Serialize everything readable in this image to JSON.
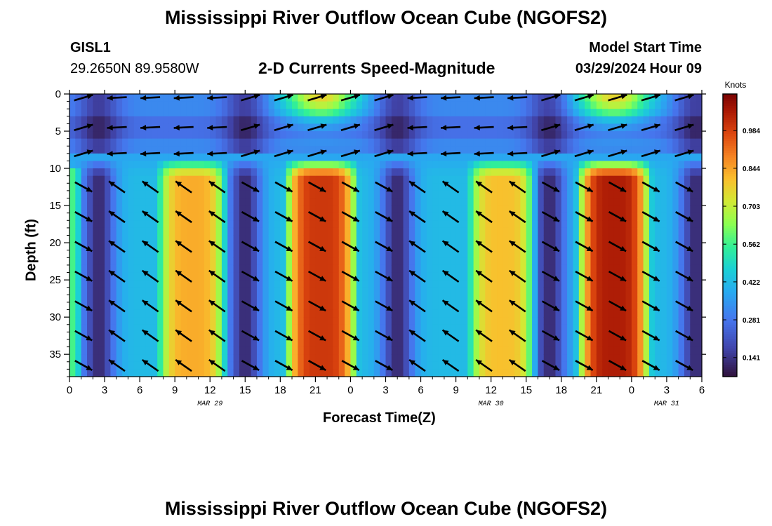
{
  "title": "Mississippi River Outflow Ocean Cube (NGOFS2)",
  "footer_title": "Mississippi River Outflow Ocean Cube (NGOFS2)",
  "station": {
    "id": "GISL1",
    "coords": "29.2650N  89.9580W"
  },
  "subtitle": "2-D Currents Speed-Magnitude",
  "model_start": {
    "label": "Model Start Time",
    "value": "03/29/2024 Hour 09"
  },
  "colors": {
    "low": "#30123b",
    "high": "#7a0403",
    "arrow": "#000000"
  },
  "chart_data": {
    "type": "heatmap",
    "xlabel": "Forecast Time(Z)",
    "ylabel": "Depth (ft)",
    "x_tick_labels": [
      "0",
      "3",
      "6",
      "9",
      "12",
      "15",
      "18",
      "21",
      "0",
      "3",
      "6",
      "9",
      "12",
      "15",
      "18",
      "21",
      "0",
      "3",
      "6"
    ],
    "date_labels": [
      {
        "text": "MAR 29",
        "hour_offset": 12
      },
      {
        "text": "MAR 30",
        "hour_offset": 36
      },
      {
        "text": "MAR 31",
        "hour_offset": 51
      }
    ],
    "x_range_hours": [
      0,
      54
    ],
    "y_range_ft": [
      0,
      38
    ],
    "y_ticks": [
      0,
      5,
      10,
      15,
      20,
      25,
      30,
      35
    ],
    "y_reversed": true,
    "colorbar": {
      "unit": "Knots",
      "vmin": 0.07,
      "vmax": 1.12,
      "tick_values": [
        0.141,
        0.281,
        0.422,
        0.562,
        0.703,
        0.844,
        0.984
      ],
      "tick_labels": [
        "0.141",
        "0.281",
        "0.422",
        "0.562",
        "0.703",
        "0.844",
        "0.984"
      ]
    },
    "speed_model": {
      "surface_peak_hours": [
        21.5,
        46.5
      ],
      "deep_peak_hours": [
        10.5,
        21.5,
        37,
        46.5
      ],
      "deep_peak_values": [
        0.83,
        1.0,
        0.8,
        1.05
      ],
      "slack_hours": [
        2.5,
        15,
        28,
        41,
        53.5
      ]
    }
  }
}
